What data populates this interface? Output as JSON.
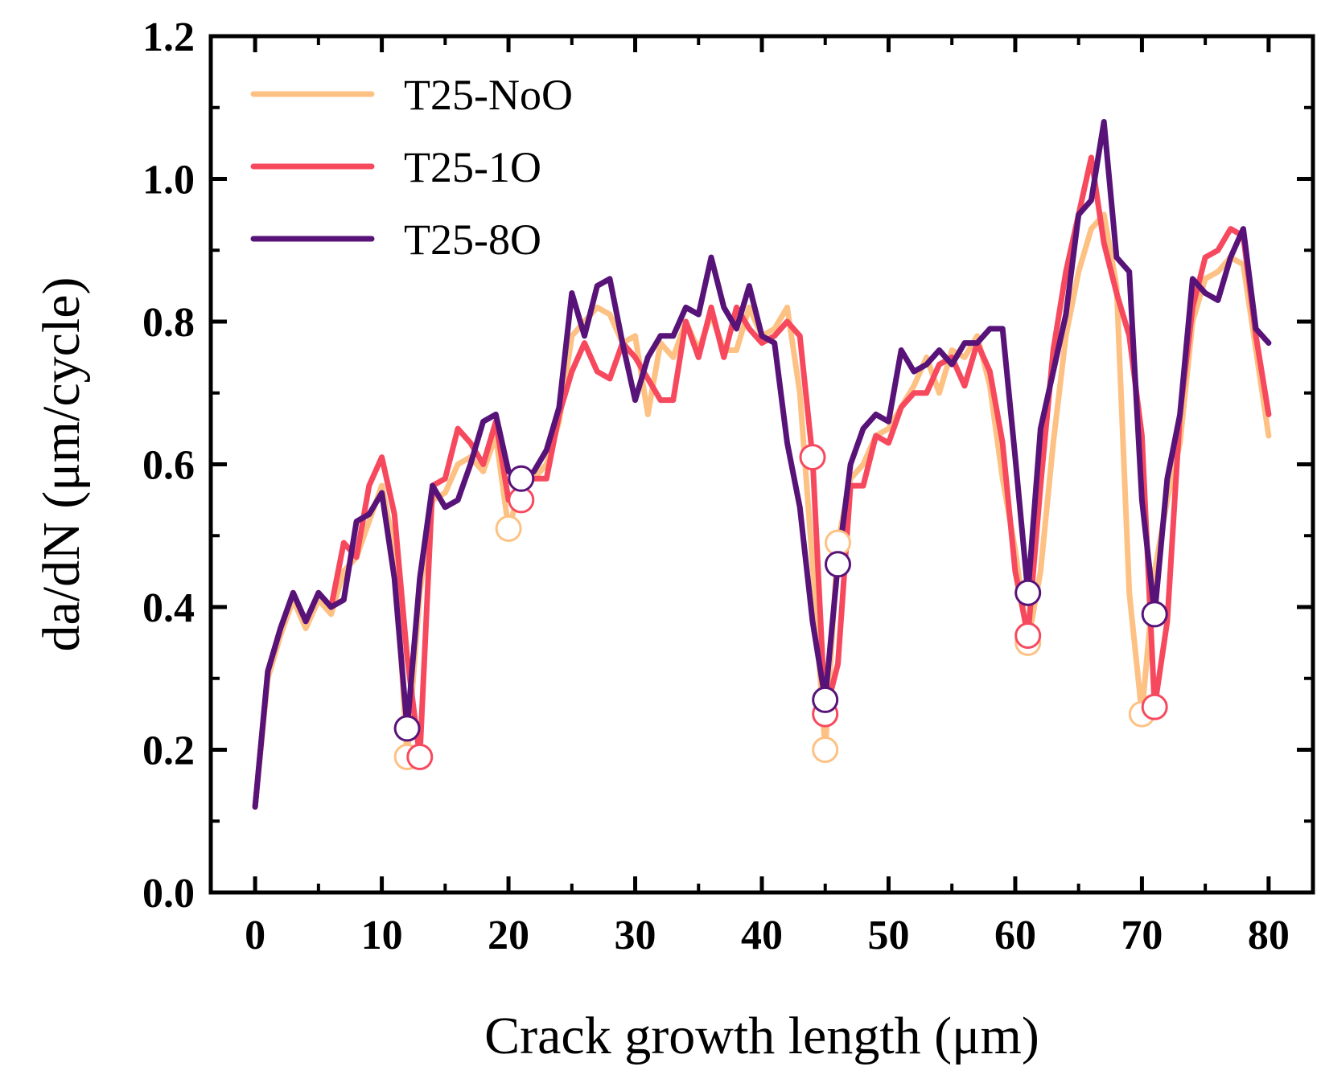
{
  "chart_data": {
    "type": "line",
    "title": "",
    "xlabel": "Crack growth length (μm)",
    "ylabel": "da/dN (μm/cycle)",
    "xlim": [
      -3.5,
      83.5
    ],
    "ylim": [
      0.0,
      1.2
    ],
    "xticks": [
      0,
      10,
      20,
      30,
      40,
      50,
      60,
      70,
      80
    ],
    "yticks": [
      0.0,
      0.2,
      0.4,
      0.6,
      0.8,
      1.0,
      1.2
    ],
    "xtick_labels": [
      "0",
      "10",
      "20",
      "30",
      "40",
      "50",
      "60",
      "70",
      "80"
    ],
    "ytick_labels": [
      "0.0",
      "0.2",
      "0.4",
      "0.6",
      "0.8",
      "1.0",
      "1.2"
    ],
    "legend_position": "top-left",
    "series": [
      {
        "name": "T25-NoO",
        "color": "#FEC184",
        "x": [
          0,
          1,
          2,
          3,
          4,
          5,
          6,
          7,
          8,
          9,
          10,
          11,
          12,
          13,
          14,
          15,
          16,
          17,
          18,
          19,
          20,
          21,
          22,
          23,
          24,
          25,
          26,
          27,
          28,
          29,
          30,
          31,
          32,
          33,
          34,
          35,
          36,
          37,
          38,
          39,
          40,
          41,
          42,
          43,
          44,
          45,
          46,
          47,
          48,
          49,
          50,
          51,
          52,
          53,
          54,
          55,
          56,
          57,
          58,
          59,
          60,
          61,
          62,
          63,
          64,
          65,
          66,
          67,
          68,
          69,
          70,
          71,
          72,
          73,
          74,
          75,
          76,
          77,
          78,
          79,
          80
        ],
        "values": [
          0.12,
          0.3,
          0.36,
          0.41,
          0.37,
          0.41,
          0.39,
          0.45,
          0.47,
          0.52,
          0.57,
          0.48,
          0.19,
          0.42,
          0.55,
          0.56,
          0.6,
          0.61,
          0.59,
          0.64,
          0.51,
          0.57,
          0.58,
          0.6,
          0.66,
          0.78,
          0.8,
          0.82,
          0.81,
          0.77,
          0.78,
          0.67,
          0.77,
          0.75,
          0.8,
          0.76,
          0.81,
          0.76,
          0.76,
          0.82,
          0.78,
          0.79,
          0.82,
          0.7,
          0.46,
          0.2,
          0.49,
          0.58,
          0.6,
          0.64,
          0.65,
          0.68,
          0.71,
          0.75,
          0.7,
          0.76,
          0.75,
          0.78,
          0.71,
          0.58,
          0.48,
          0.35,
          0.45,
          0.63,
          0.78,
          0.87,
          0.93,
          0.95,
          0.85,
          0.42,
          0.25,
          0.45,
          0.55,
          0.63,
          0.8,
          0.86,
          0.87,
          0.89,
          0.88,
          0.76,
          0.64
        ],
        "markers": [
          [
            12,
            0.19
          ],
          [
            20,
            0.51
          ],
          [
            46,
            0.49
          ],
          [
            45,
            0.2
          ],
          [
            61,
            0.35
          ],
          [
            70,
            0.25
          ]
        ]
      },
      {
        "name": "T25-1O",
        "color": "#F7495E",
        "x": [
          0,
          1,
          2,
          3,
          4,
          5,
          6,
          7,
          8,
          9,
          10,
          11,
          12,
          13,
          14,
          15,
          16,
          17,
          18,
          19,
          20,
          21,
          22,
          23,
          24,
          25,
          26,
          27,
          28,
          29,
          30,
          31,
          32,
          33,
          34,
          35,
          36,
          37,
          38,
          39,
          40,
          41,
          42,
          43,
          44,
          45,
          46,
          47,
          48,
          49,
          50,
          51,
          52,
          53,
          54,
          55,
          56,
          57,
          58,
          59,
          60,
          61,
          62,
          63,
          64,
          65,
          66,
          67,
          68,
          69,
          70,
          71,
          72,
          73,
          74,
          75,
          76,
          77,
          78,
          79,
          80
        ],
        "values": [
          0.12,
          0.31,
          0.37,
          0.42,
          0.38,
          0.42,
          0.4,
          0.49,
          0.47,
          0.57,
          0.61,
          0.53,
          0.33,
          0.19,
          0.57,
          0.58,
          0.65,
          0.63,
          0.6,
          0.66,
          0.55,
          0.57,
          0.58,
          0.58,
          0.67,
          0.73,
          0.77,
          0.73,
          0.72,
          0.77,
          0.75,
          0.72,
          0.69,
          0.69,
          0.8,
          0.75,
          0.82,
          0.75,
          0.82,
          0.79,
          0.77,
          0.78,
          0.8,
          0.78,
          0.61,
          0.25,
          0.32,
          0.57,
          0.57,
          0.64,
          0.63,
          0.68,
          0.7,
          0.7,
          0.74,
          0.75,
          0.71,
          0.77,
          0.73,
          0.63,
          0.45,
          0.36,
          0.57,
          0.76,
          0.87,
          0.95,
          1.03,
          0.91,
          0.84,
          0.78,
          0.64,
          0.26,
          0.38,
          0.67,
          0.82,
          0.89,
          0.9,
          0.93,
          0.92,
          0.78,
          0.67
        ],
        "markers": [
          [
            13,
            0.19
          ],
          [
            21,
            0.55
          ],
          [
            44,
            0.61
          ],
          [
            45,
            0.25
          ],
          [
            61,
            0.36
          ],
          [
            71,
            0.26
          ]
        ]
      },
      {
        "name": "T25-8O",
        "color": "#581379",
        "x": [
          0,
          1,
          2,
          3,
          4,
          5,
          6,
          7,
          8,
          9,
          10,
          11,
          12,
          13,
          14,
          15,
          16,
          17,
          18,
          19,
          20,
          21,
          22,
          23,
          24,
          25,
          26,
          27,
          28,
          29,
          30,
          31,
          32,
          33,
          34,
          35,
          36,
          37,
          38,
          39,
          40,
          41,
          42,
          43,
          44,
          45,
          46,
          47,
          48,
          49,
          50,
          51,
          52,
          53,
          54,
          55,
          56,
          57,
          58,
          59,
          60,
          61,
          62,
          63,
          64,
          65,
          66,
          67,
          68,
          69,
          70,
          71,
          72,
          73,
          74,
          75,
          76,
          77,
          78,
          79,
          80
        ],
        "values": [
          0.12,
          0.31,
          0.37,
          0.42,
          0.38,
          0.42,
          0.4,
          0.41,
          0.52,
          0.53,
          0.56,
          0.44,
          0.23,
          0.44,
          0.57,
          0.54,
          0.55,
          0.6,
          0.66,
          0.67,
          0.59,
          0.58,
          0.59,
          0.62,
          0.68,
          0.84,
          0.78,
          0.85,
          0.86,
          0.77,
          0.69,
          0.75,
          0.78,
          0.78,
          0.82,
          0.81,
          0.89,
          0.82,
          0.79,
          0.85,
          0.78,
          0.77,
          0.63,
          0.54,
          0.38,
          0.27,
          0.46,
          0.6,
          0.65,
          0.67,
          0.66,
          0.76,
          0.73,
          0.74,
          0.76,
          0.74,
          0.77,
          0.77,
          0.79,
          0.79,
          0.61,
          0.42,
          0.65,
          0.73,
          0.81,
          0.95,
          0.97,
          1.08,
          0.89,
          0.87,
          0.55,
          0.39,
          0.58,
          0.67,
          0.86,
          0.84,
          0.83,
          0.89,
          0.93,
          0.79,
          0.77
        ],
        "markers": [
          [
            12,
            0.23
          ],
          [
            21,
            0.58
          ],
          [
            45,
            0.27
          ],
          [
            46,
            0.46
          ],
          [
            61,
            0.42
          ],
          [
            71,
            0.39
          ]
        ]
      }
    ]
  }
}
